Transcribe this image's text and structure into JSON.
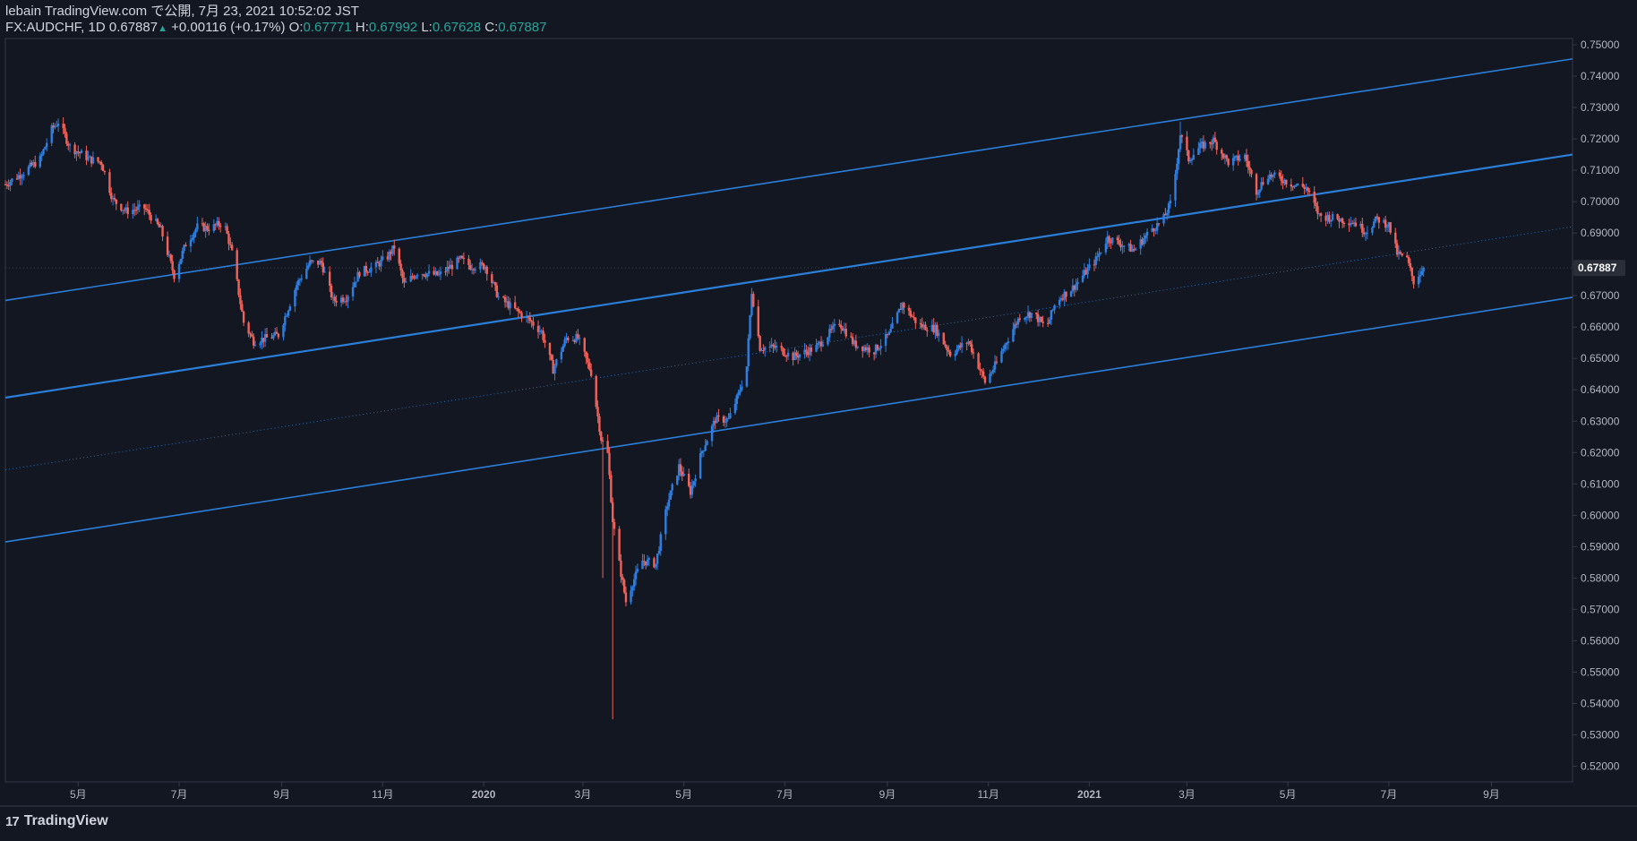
{
  "header": {
    "publish_line": "lebain TradingView.com で公開, 7月 23, 2021 10:52:02 JST",
    "symbol": "FX:AUDCHF, 1D",
    "last": "0.67887",
    "change": "+0.00116 (+0.17%)",
    "open_label": "O:",
    "open": "0.67771",
    "high_label": "H:",
    "high": "0.67992",
    "low_label": "L:",
    "low": "0.67628",
    "close_label": "C:",
    "close": "0.67887"
  },
  "footer": {
    "logo_text": "TradingView",
    "logo_mark": "17"
  },
  "colors": {
    "background": "#131722",
    "up": "#2f7fe0",
    "down": "#f0625a",
    "channel": "#2b7fd9",
    "axis_text": "#b2b5be",
    "border": "#363a45"
  },
  "chart_data": {
    "type": "candlestick",
    "symbol": "FX:AUDCHF",
    "interval": "1D",
    "last_price": 0.67887,
    "last_price_label": "0.67887",
    "ylim": [
      0.515,
      0.752
    ],
    "y_ticks": [
      "0.75000",
      "0.74000",
      "0.73000",
      "0.72000",
      "0.71000",
      "0.70000",
      "0.69000",
      "0.68000",
      "0.67000",
      "0.66000",
      "0.65000",
      "0.64000",
      "0.63000",
      "0.62000",
      "0.61000",
      "0.60000",
      "0.59000",
      "0.58000",
      "0.57000",
      "0.56000",
      "0.55000",
      "0.54000",
      "0.53000",
      "0.52000"
    ],
    "x_range": [
      "2019-03-18",
      "2021-10-20"
    ],
    "x_ticks": [
      {
        "date": "2019-05-01",
        "label": "5月"
      },
      {
        "date": "2019-07-01",
        "label": "7月"
      },
      {
        "date": "2019-09-01",
        "label": "9月"
      },
      {
        "date": "2019-11-01",
        "label": "11月"
      },
      {
        "date": "2020-01-01",
        "label": "2020"
      },
      {
        "date": "2020-03-01",
        "label": "3月"
      },
      {
        "date": "2020-05-01",
        "label": "5月"
      },
      {
        "date": "2020-07-01",
        "label": "7月"
      },
      {
        "date": "2020-09-01",
        "label": "9月"
      },
      {
        "date": "2020-11-01",
        "label": "11月"
      },
      {
        "date": "2021-01-01",
        "label": "2021"
      },
      {
        "date": "2021-03-01",
        "label": "3月"
      },
      {
        "date": "2021-05-01",
        "label": "5月"
      },
      {
        "date": "2021-07-01",
        "label": "7月"
      },
      {
        "date": "2021-09-01",
        "label": "9月"
      }
    ],
    "price_path": [
      [
        "2019-03-18",
        0.7055
      ],
      [
        "2019-03-28",
        0.709
      ],
      [
        "2019-04-08",
        0.7135
      ],
      [
        "2019-04-15",
        0.723
      ],
      [
        "2019-04-19",
        0.7255
      ],
      [
        "2019-04-26",
        0.7175
      ],
      [
        "2019-05-08",
        0.7135
      ],
      [
        "2019-05-15",
        0.7125
      ],
      [
        "2019-05-22",
        0.7005
      ],
      [
        "2019-05-30",
        0.697
      ],
      [
        "2019-06-10",
        0.698
      ],
      [
        "2019-06-20",
        0.691
      ],
      [
        "2019-06-28",
        0.6765
      ],
      [
        "2019-07-05",
        0.6865
      ],
      [
        "2019-07-12",
        0.692
      ],
      [
        "2019-07-20",
        0.6915
      ],
      [
        "2019-07-28",
        0.6935
      ],
      [
        "2019-08-02",
        0.6835
      ],
      [
        "2019-08-09",
        0.6615
      ],
      [
        "2019-08-15",
        0.6555
      ],
      [
        "2019-08-23",
        0.6565
      ],
      [
        "2019-08-30",
        0.6575
      ],
      [
        "2019-09-10",
        0.6735
      ],
      [
        "2019-09-18",
        0.6805
      ],
      [
        "2019-09-25",
        0.6805
      ],
      [
        "2019-10-02",
        0.6685
      ],
      [
        "2019-10-10",
        0.6695
      ],
      [
        "2019-10-18",
        0.6775
      ],
      [
        "2019-10-28",
        0.6795
      ],
      [
        "2019-11-04",
        0.6825
      ],
      [
        "2019-11-08",
        0.6855
      ],
      [
        "2019-11-14",
        0.6735
      ],
      [
        "2019-11-22",
        0.6775
      ],
      [
        "2019-12-05",
        0.6765
      ],
      [
        "2019-12-10",
        0.6785
      ],
      [
        "2019-12-18",
        0.6815
      ],
      [
        "2019-12-24",
        0.6795
      ],
      [
        "2020-01-02",
        0.6795
      ],
      [
        "2020-01-10",
        0.6695
      ],
      [
        "2020-01-20",
        0.6655
      ],
      [
        "2020-01-28",
        0.6625
      ],
      [
        "2020-02-05",
        0.6585
      ],
      [
        "2020-02-12",
        0.6465
      ],
      [
        "2020-02-20",
        0.6565
      ],
      [
        "2020-02-27",
        0.6565
      ],
      [
        "2020-03-06",
        0.6455
      ],
      [
        "2020-03-12",
        0.6245
      ],
      [
        "2020-03-16",
        0.6195
      ],
      [
        "2020-03-19",
        0.5985
      ],
      [
        "2020-03-23",
        0.5845
      ],
      [
        "2020-03-27",
        0.5725
      ],
      [
        "2020-03-31",
        0.5785
      ],
      [
        "2020-04-06",
        0.5855
      ],
      [
        "2020-04-14",
        0.5845
      ],
      [
        "2020-04-21",
        0.6035
      ],
      [
        "2020-04-28",
        0.6155
      ],
      [
        "2020-05-05",
        0.6075
      ],
      [
        "2020-05-12",
        0.6205
      ],
      [
        "2020-05-20",
        0.6305
      ],
      [
        "2020-05-28",
        0.6305
      ],
      [
        "2020-06-03",
        0.6385
      ],
      [
        "2020-06-08",
        0.6475
      ],
      [
        "2020-06-11",
        0.6715
      ],
      [
        "2020-06-16",
        0.6535
      ],
      [
        "2020-06-26",
        0.6535
      ],
      [
        "2020-07-06",
        0.6505
      ],
      [
        "2020-07-20",
        0.6535
      ],
      [
        "2020-08-03",
        0.6615
      ],
      [
        "2020-08-12",
        0.6545
      ],
      [
        "2020-08-24",
        0.6525
      ],
      [
        "2020-09-02",
        0.6575
      ],
      [
        "2020-09-10",
        0.6675
      ],
      [
        "2020-09-20",
        0.6605
      ],
      [
        "2020-09-30",
        0.6595
      ],
      [
        "2020-10-09",
        0.6515
      ],
      [
        "2020-10-20",
        0.6555
      ],
      [
        "2020-10-30",
        0.6425
      ],
      [
        "2020-11-06",
        0.6485
      ],
      [
        "2020-11-12",
        0.6555
      ],
      [
        "2020-11-20",
        0.6635
      ],
      [
        "2020-11-28",
        0.6645
      ],
      [
        "2020-12-06",
        0.6595
      ],
      [
        "2020-12-12",
        0.6685
      ],
      [
        "2020-12-22",
        0.6725
      ],
      [
        "2021-01-05",
        0.6815
      ],
      [
        "2021-01-12",
        0.6885
      ],
      [
        "2021-01-20",
        0.6865
      ],
      [
        "2021-01-28",
        0.6845
      ],
      [
        "2021-02-08",
        0.6915
      ],
      [
        "2021-02-14",
        0.6935
      ],
      [
        "2021-02-20",
        0.7005
      ],
      [
        "2021-02-25",
        0.7215
      ],
      [
        "2021-03-02",
        0.7135
      ],
      [
        "2021-03-09",
        0.7175
      ],
      [
        "2021-03-17",
        0.7195
      ],
      [
        "2021-03-26",
        0.7125
      ],
      [
        "2021-04-05",
        0.7145
      ],
      [
        "2021-04-12",
        0.7035
      ],
      [
        "2021-04-19",
        0.7085
      ],
      [
        "2021-04-26",
        0.7075
      ],
      [
        "2021-05-04",
        0.7055
      ],
      [
        "2021-05-12",
        0.7045
      ],
      [
        "2021-05-20",
        0.6955
      ],
      [
        "2021-05-31",
        0.6945
      ],
      [
        "2021-06-10",
        0.6935
      ],
      [
        "2021-06-17",
        0.6905
      ],
      [
        "2021-06-24",
        0.6945
      ],
      [
        "2021-07-01",
        0.6925
      ],
      [
        "2021-07-06",
        0.6835
      ],
      [
        "2021-07-12",
        0.6815
      ],
      [
        "2021-07-16",
        0.6745
      ],
      [
        "2021-07-22",
        0.67887
      ]
    ],
    "wick_extremes": [
      {
        "date": "2020-03-19",
        "low": 0.535
      },
      {
        "date": "2020-03-13",
        "low": 0.58
      },
      {
        "date": "2021-02-25",
        "high": 0.7255
      },
      {
        "date": "2019-04-19",
        "high": 0.7265
      }
    ],
    "channel_lines": [
      {
        "name": "upper",
        "style": "solid",
        "from": [
          "2019-03-18",
          0.6685
        ],
        "to": [
          "2021-10-20",
          0.7455
        ]
      },
      {
        "name": "middle",
        "style": "solid",
        "from": [
          "2019-03-18",
          0.6375
        ],
        "to": [
          "2021-10-20",
          0.715
        ]
      },
      {
        "name": "median",
        "style": "dotted",
        "from": [
          "2019-03-18",
          0.6145
        ],
        "to": [
          "2021-10-20",
          0.692
        ]
      },
      {
        "name": "lower",
        "style": "solid",
        "from": [
          "2019-03-18",
          0.5915
        ],
        "to": [
          "2021-10-20",
          0.6695
        ]
      }
    ]
  }
}
